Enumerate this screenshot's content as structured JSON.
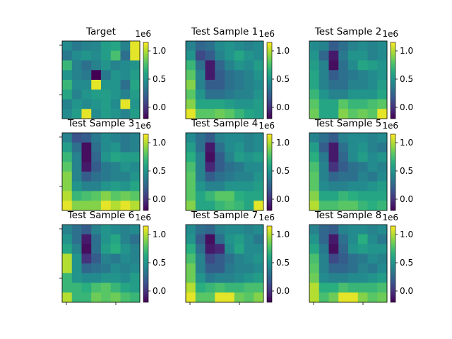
{
  "chart_data": {
    "type": "heatmap",
    "colormap": "viridis",
    "value_range": [
      -200000.0,
      1150000.0
    ],
    "colorbar_ticks": [
      "1.0",
      "0.5",
      "0.0"
    ],
    "colorbar_tick_values": [
      1000000.0,
      500000.0,
      0.0
    ],
    "offset_label": "1e6",
    "panels": [
      {
        "title": "Target",
        "grid": [
          [
            0.45,
            0.35,
            0.4,
            0.42,
            0.55,
            0.6,
            0.4,
            1.1
          ],
          [
            0.35,
            0.45,
            0.5,
            0.45,
            0.55,
            0.75,
            0.3,
            1.1
          ],
          [
            0.7,
            0.4,
            0.3,
            0.4,
            0.5,
            0.4,
            0.45,
            0.5
          ],
          [
            0.5,
            0.4,
            0.35,
            -0.2,
            0.35,
            0.5,
            0.45,
            0.55
          ],
          [
            0.7,
            0.45,
            0.45,
            1.1,
            0.5,
            0.5,
            0.3,
            0.6
          ],
          [
            0.6,
            0.4,
            0.5,
            0.55,
            0.55,
            0.5,
            0.4,
            0.55
          ],
          [
            0.4,
            0.5,
            0.45,
            0.5,
            0.55,
            0.45,
            1.1,
            0.5
          ],
          [
            0.45,
            0.55,
            1.1,
            0.45,
            0.55,
            0.5,
            0.4,
            0.55
          ]
        ]
      },
      {
        "title": "Test Sample 1",
        "grid": [
          [
            0.4,
            0.25,
            0.3,
            0.45,
            0.5,
            0.45,
            0.4,
            0.45
          ],
          [
            0.5,
            0.1,
            0.2,
            0.4,
            0.5,
            0.6,
            0.5,
            0.45
          ],
          [
            0.7,
            0.3,
            -0.1,
            0.25,
            0.4,
            0.5,
            0.45,
            0.55
          ],
          [
            0.8,
            0.4,
            -0.1,
            0.2,
            0.3,
            0.35,
            0.4,
            0.5
          ],
          [
            0.9,
            0.4,
            0.2,
            0.2,
            0.3,
            0.35,
            0.4,
            0.45
          ],
          [
            0.8,
            0.5,
            0.3,
            0.3,
            0.35,
            0.4,
            0.4,
            0.5
          ],
          [
            0.9,
            0.6,
            0.6,
            0.6,
            0.55,
            0.5,
            0.5,
            0.55
          ],
          [
            1.1,
            0.8,
            0.8,
            0.85,
            0.8,
            0.7,
            0.6,
            0.55
          ]
        ]
      },
      {
        "title": "Test Sample 2",
        "grid": [
          [
            0.45,
            0.4,
            0.2,
            0.3,
            0.4,
            0.45,
            0.4,
            0.45
          ],
          [
            0.5,
            0.25,
            -0.1,
            0.35,
            0.5,
            0.5,
            0.4,
            0.45
          ],
          [
            0.55,
            0.4,
            -0.15,
            0.3,
            0.45,
            0.6,
            0.55,
            0.5
          ],
          [
            0.6,
            0.4,
            0.2,
            0.3,
            0.35,
            0.4,
            0.45,
            0.5
          ],
          [
            0.6,
            0.4,
            0.3,
            0.3,
            0.4,
            0.4,
            0.45,
            0.55
          ],
          [
            0.7,
            0.5,
            0.4,
            0.4,
            0.5,
            0.5,
            0.5,
            0.6
          ],
          [
            0.8,
            0.6,
            0.6,
            0.8,
            0.7,
            0.7,
            0.75,
            0.8
          ],
          [
            0.85,
            0.6,
            0.6,
            0.9,
            0.8,
            0.85,
            0.8,
            1.1
          ]
        ]
      },
      {
        "title": "Test Sample 3",
        "grid": [
          [
            0.4,
            0.15,
            0.2,
            0.35,
            0.45,
            0.4,
            0.35,
            0.4
          ],
          [
            0.55,
            0.3,
            -0.15,
            0.3,
            0.45,
            0.5,
            0.35,
            0.4
          ],
          [
            0.7,
            0.4,
            -0.15,
            0.25,
            0.5,
            0.6,
            0.55,
            0.55
          ],
          [
            0.8,
            0.4,
            -0.1,
            0.2,
            0.35,
            0.4,
            0.5,
            0.45
          ],
          [
            0.9,
            0.4,
            0.2,
            0.3,
            0.35,
            0.4,
            0.4,
            0.5
          ],
          [
            0.9,
            0.5,
            0.4,
            0.4,
            0.5,
            0.55,
            0.5,
            0.6
          ],
          [
            1.0,
            0.7,
            0.75,
            0.8,
            0.9,
            0.8,
            0.85,
            0.8
          ],
          [
            1.1,
            0.9,
            0.9,
            0.9,
            1.1,
            1.0,
            1.1,
            1.0
          ]
        ]
      },
      {
        "title": "Test Sample 4",
        "grid": [
          [
            0.45,
            0.3,
            0.2,
            0.4,
            0.45,
            0.45,
            0.4,
            0.45
          ],
          [
            0.55,
            0.3,
            -0.1,
            0.3,
            0.45,
            0.5,
            0.4,
            0.45
          ],
          [
            0.65,
            0.4,
            -0.15,
            0.2,
            0.4,
            0.55,
            0.5,
            0.55
          ],
          [
            0.75,
            0.4,
            -0.05,
            0.2,
            0.3,
            0.35,
            0.45,
            0.45
          ],
          [
            0.8,
            0.4,
            0.2,
            0.3,
            0.35,
            0.4,
            0.4,
            0.5
          ],
          [
            0.8,
            0.5,
            0.4,
            0.4,
            0.5,
            0.5,
            0.5,
            0.55
          ],
          [
            0.8,
            0.6,
            0.7,
            0.8,
            0.8,
            0.65,
            0.6,
            0.6
          ],
          [
            0.9,
            0.6,
            0.6,
            0.7,
            0.75,
            0.7,
            0.6,
            1.1
          ]
        ]
      },
      {
        "title": "Test Sample 5",
        "grid": [
          [
            0.4,
            0.3,
            0.2,
            0.4,
            0.45,
            0.45,
            0.4,
            0.45
          ],
          [
            0.55,
            0.2,
            -0.1,
            0.3,
            0.45,
            0.5,
            0.4,
            0.35
          ],
          [
            0.65,
            0.35,
            -0.1,
            0.25,
            0.45,
            0.55,
            0.45,
            0.5
          ],
          [
            0.75,
            0.4,
            0.0,
            0.2,
            0.3,
            0.35,
            0.45,
            0.4
          ],
          [
            0.8,
            0.4,
            0.25,
            0.3,
            0.3,
            0.4,
            0.35,
            0.45
          ],
          [
            0.8,
            0.45,
            0.4,
            0.4,
            0.45,
            0.45,
            0.5,
            0.55
          ],
          [
            0.9,
            0.6,
            0.6,
            0.7,
            0.65,
            0.6,
            0.6,
            0.6
          ],
          [
            1.0,
            0.75,
            0.75,
            0.8,
            0.8,
            0.7,
            0.65,
            0.7
          ]
        ]
      },
      {
        "title": "Test Sample 6",
        "grid": [
          [
            0.4,
            0.3,
            0.2,
            0.4,
            0.5,
            0.45,
            0.4,
            0.45
          ],
          [
            0.5,
            0.3,
            -0.1,
            0.3,
            0.5,
            0.6,
            0.4,
            0.3
          ],
          [
            0.6,
            0.4,
            -0.15,
            0.3,
            0.55,
            0.65,
            0.5,
            0.4
          ],
          [
            1.0,
            0.5,
            0.0,
            0.2,
            0.4,
            0.35,
            0.45,
            0.4
          ],
          [
            1.0,
            0.5,
            0.25,
            0.3,
            0.35,
            0.45,
            0.4,
            0.45
          ],
          [
            0.7,
            0.5,
            0.45,
            0.45,
            0.5,
            0.5,
            0.45,
            0.55
          ],
          [
            0.7,
            0.7,
            0.65,
            0.75,
            0.8,
            0.7,
            0.6,
            0.55
          ],
          [
            1.0,
            0.7,
            0.7,
            0.85,
            0.8,
            0.85,
            0.75,
            0.7
          ]
        ]
      },
      {
        "title": "Test Sample 7",
        "grid": [
          [
            0.45,
            0.3,
            0.25,
            0.4,
            0.45,
            0.45,
            0.4,
            0.45
          ],
          [
            0.5,
            0.2,
            -0.15,
            0.3,
            0.5,
            0.55,
            0.45,
            0.35
          ],
          [
            0.65,
            0.3,
            -0.1,
            -0.05,
            0.45,
            0.6,
            0.45,
            0.45
          ],
          [
            0.75,
            0.4,
            0.1,
            0.2,
            0.3,
            0.4,
            0.45,
            0.5
          ],
          [
            0.85,
            0.4,
            0.2,
            0.2,
            0.35,
            0.4,
            0.4,
            0.45
          ],
          [
            0.85,
            0.5,
            0.35,
            0.4,
            0.4,
            0.45,
            0.5,
            0.55
          ],
          [
            1.0,
            0.65,
            0.7,
            0.75,
            0.7,
            0.7,
            0.75,
            0.75
          ],
          [
            1.1,
            0.8,
            0.8,
            1.1,
            1.1,
            0.85,
            0.8,
            0.9
          ]
        ]
      },
      {
        "title": "Test Sample 8",
        "grid": [
          [
            0.4,
            0.25,
            0.2,
            0.4,
            0.45,
            0.45,
            0.4,
            0.45
          ],
          [
            0.5,
            0.25,
            -0.1,
            0.3,
            0.45,
            0.65,
            0.45,
            0.35
          ],
          [
            0.6,
            0.35,
            -0.15,
            0.25,
            0.5,
            0.55,
            0.5,
            0.5
          ],
          [
            0.75,
            0.4,
            0.1,
            0.2,
            0.3,
            0.35,
            0.45,
            0.4
          ],
          [
            0.8,
            0.4,
            0.25,
            0.25,
            0.3,
            0.4,
            0.35,
            0.45
          ],
          [
            0.85,
            0.45,
            0.4,
            0.4,
            0.45,
            0.45,
            0.5,
            0.55
          ],
          [
            1.0,
            0.65,
            0.65,
            0.75,
            0.7,
            0.7,
            0.7,
            0.75
          ],
          [
            1.0,
            0.75,
            0.85,
            1.1,
            1.1,
            0.9,
            0.8,
            0.85
          ]
        ]
      }
    ]
  }
}
